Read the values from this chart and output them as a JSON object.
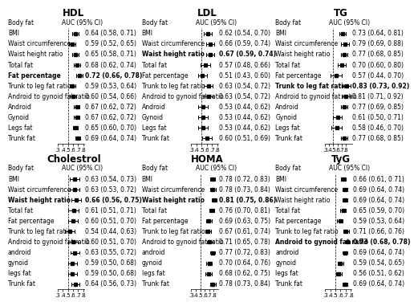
{
  "panels": [
    {
      "title": "HDL",
      "col": 0,
      "row": 0,
      "xlabel_ticks": [
        ".3",
        ".4",
        ".5",
        ".6",
        ".7",
        ".8"
      ],
      "xticks": [
        0.3,
        0.4,
        0.5,
        0.6,
        0.7,
        0.8
      ],
      "xlim": [
        0.3,
        0.82
      ],
      "vline": 0.5,
      "rows": [
        {
          "label": "BMI",
          "est": 0.64,
          "lo": 0.58,
          "hi": 0.71,
          "text": "0.64 (0.58, 0.71)",
          "bold": false
        },
        {
          "label": "Waist circumference",
          "est": 0.59,
          "lo": 0.52,
          "hi": 0.65,
          "text": "0.59 (0.52, 0.65)",
          "bold": false
        },
        {
          "label": "Waist height ratio",
          "est": 0.65,
          "lo": 0.58,
          "hi": 0.71,
          "text": "0.65 (0.58, 0.71)",
          "bold": false
        },
        {
          "label": "Total fat",
          "est": 0.68,
          "lo": 0.62,
          "hi": 0.74,
          "text": "0.68 (0.62, 0.74)",
          "bold": false
        },
        {
          "label": "Fat percentage",
          "est": 0.72,
          "lo": 0.66,
          "hi": 0.78,
          "text": "0.72 (0.66, 0.78)",
          "bold": true
        },
        {
          "label": "Trunk to leg fat ratio",
          "est": 0.59,
          "lo": 0.53,
          "hi": 0.64,
          "text": "0.59 (0.53, 0.64)",
          "bold": false
        },
        {
          "label": "Android to gynoid fat ratio",
          "est": 0.6,
          "lo": 0.54,
          "hi": 0.66,
          "text": "0.60 (0.54, 0.66)",
          "bold": false
        },
        {
          "label": "Android",
          "est": 0.67,
          "lo": 0.62,
          "hi": 0.72,
          "text": "0.67 (0.62, 0.72)",
          "bold": false
        },
        {
          "label": "Gynoid",
          "est": 0.67,
          "lo": 0.62,
          "hi": 0.72,
          "text": "0.67 (0.62, 0.72)",
          "bold": false
        },
        {
          "label": "Legs fat",
          "est": 0.65,
          "lo": 0.6,
          "hi": 0.7,
          "text": "0.65 (0.60, 0.70)",
          "bold": false
        },
        {
          "label": "Trunk fat",
          "est": 0.69,
          "lo": 0.64,
          "hi": 0.74,
          "text": "0.69 (0.64, 0.74)",
          "bold": false
        }
      ]
    },
    {
      "title": "LDL",
      "col": 1,
      "row": 0,
      "xlabel_ticks": [
        ".3",
        ".4",
        ".5",
        ".6",
        ".7",
        ".8"
      ],
      "xticks": [
        0.3,
        0.4,
        0.5,
        0.6,
        0.7,
        0.8
      ],
      "xlim": [
        0.3,
        0.82
      ],
      "vline": 0.5,
      "rows": [
        {
          "label": "BMI",
          "est": 0.62,
          "lo": 0.54,
          "hi": 0.7,
          "text": "0.62 (0.54, 0.70)",
          "bold": false
        },
        {
          "label": "Waist circumference",
          "est": 0.66,
          "lo": 0.59,
          "hi": 0.74,
          "text": "0.66 (0.59, 0.74)",
          "bold": false
        },
        {
          "label": "Waist height ratio",
          "est": 0.67,
          "lo": 0.59,
          "hi": 0.74,
          "text": "0.67 (0.59, 0.74)",
          "bold": true
        },
        {
          "label": "Total fat",
          "est": 0.57,
          "lo": 0.48,
          "hi": 0.66,
          "text": "0.57 (0.48, 0.66)",
          "bold": false
        },
        {
          "label": "Fat percentage",
          "est": 0.51,
          "lo": 0.43,
          "hi": 0.6,
          "text": "0.51 (0.43, 0.60)",
          "bold": false
        },
        {
          "label": "Trunk to leg fat ratio",
          "est": 0.63,
          "lo": 0.54,
          "hi": 0.72,
          "text": "0.63 (0.54, 0.72)",
          "bold": false
        },
        {
          "label": "Android to gynoid fat ratio",
          "est": 0.63,
          "lo": 0.54,
          "hi": 0.72,
          "text": "0.63 (0.54, 0.72)",
          "bold": false
        },
        {
          "label": "Android",
          "est": 0.53,
          "lo": 0.44,
          "hi": 0.62,
          "text": "0.53 (0.44, 0.62)",
          "bold": false
        },
        {
          "label": "Gynoid",
          "est": 0.53,
          "lo": 0.44,
          "hi": 0.62,
          "text": "0.53 (0.44, 0.62)",
          "bold": false
        },
        {
          "label": "Legs fat",
          "est": 0.53,
          "lo": 0.44,
          "hi": 0.62,
          "text": "0.53 (0.44, 0.62)",
          "bold": false
        },
        {
          "label": "Trunk fat",
          "est": 0.6,
          "lo": 0.51,
          "hi": 0.69,
          "text": "0.60 (0.51, 0.69)",
          "bold": false
        }
      ]
    },
    {
      "title": "TG",
      "col": 2,
      "row": 0,
      "xlabel_ticks": [
        ".3",
        ".4",
        ".5",
        ".6",
        ".7",
        ".8"
      ],
      "xticks": [
        0.3,
        0.4,
        0.5,
        0.6,
        0.7,
        0.8
      ],
      "xlim": [
        0.3,
        0.95
      ],
      "vline": 0.5,
      "rows": [
        {
          "label": "BMI",
          "est": 0.73,
          "lo": 0.64,
          "hi": 0.81,
          "text": "0.73 (0.64, 0.81)",
          "bold": false
        },
        {
          "label": "Waist circumference",
          "est": 0.79,
          "lo": 0.69,
          "hi": 0.88,
          "text": "0.79 (0.69, 0.88)",
          "bold": false
        },
        {
          "label": "Waist height ratio",
          "est": 0.77,
          "lo": 0.68,
          "hi": 0.85,
          "text": "0.77 (0.68, 0.85)",
          "bold": false
        },
        {
          "label": "Total fat",
          "est": 0.7,
          "lo": 0.6,
          "hi": 0.8,
          "text": "0.70 (0.60, 0.80)",
          "bold": false
        },
        {
          "label": "Fat percentage",
          "est": 0.57,
          "lo": 0.44,
          "hi": 0.7,
          "text": "0.57 (0.44, 0.70)",
          "bold": false
        },
        {
          "label": "Trunk to leg fat ratio",
          "est": 0.83,
          "lo": 0.73,
          "hi": 0.92,
          "text": "0.83 (0.73, 0.92)",
          "bold": true
        },
        {
          "label": "Android to gynoid fat ratio",
          "est": 0.81,
          "lo": 0.71,
          "hi": 0.92,
          "text": "0.81 (0.71, 0.92)",
          "bold": false
        },
        {
          "label": "Android",
          "est": 0.77,
          "lo": 0.69,
          "hi": 0.85,
          "text": "0.77 (0.69, 0.85)",
          "bold": false
        },
        {
          "label": "Gynoid",
          "est": 0.61,
          "lo": 0.5,
          "hi": 0.71,
          "text": "0.61 (0.50, 0.71)",
          "bold": false
        },
        {
          "label": "Legs fat",
          "est": 0.58,
          "lo": 0.46,
          "hi": 0.7,
          "text": "0.58 (0.46, 0.70)",
          "bold": false
        },
        {
          "label": "Trunk fat",
          "est": 0.77,
          "lo": 0.68,
          "hi": 0.85,
          "text": "0.77 (0.68, 0.85)",
          "bold": false
        }
      ]
    },
    {
      "title": "Cholestrol",
      "col": 0,
      "row": 1,
      "xlabel_ticks": [
        ".3",
        ".4",
        ".5",
        ".6",
        ".7",
        ".8"
      ],
      "xticks": [
        0.3,
        0.4,
        0.5,
        0.6,
        0.7,
        0.8
      ],
      "xlim": [
        0.3,
        0.82
      ],
      "vline": 0.5,
      "rows": [
        {
          "label": "BMI",
          "est": 0.63,
          "lo": 0.54,
          "hi": 0.73,
          "text": "0.63 (0.54, 0.73)",
          "bold": false
        },
        {
          "label": "Waist circumference",
          "est": 0.63,
          "lo": 0.53,
          "hi": 0.72,
          "text": "0.63 (0.53, 0.72)",
          "bold": false
        },
        {
          "label": "Waist height ratio",
          "est": 0.66,
          "lo": 0.56,
          "hi": 0.75,
          "text": "0.66 (0.56, 0.75)",
          "bold": true
        },
        {
          "label": "Total fat",
          "est": 0.61,
          "lo": 0.51,
          "hi": 0.71,
          "text": "0.61 (0.51, 0.71)",
          "bold": false
        },
        {
          "label": "Fat percentage",
          "est": 0.6,
          "lo": 0.51,
          "hi": 0.7,
          "text": "0.60 (0.51, 0.70)",
          "bold": false
        },
        {
          "label": "Trunk to leg fat ratio",
          "est": 0.54,
          "lo": 0.44,
          "hi": 0.63,
          "text": "0.54 (0.44, 0.63)",
          "bold": false
        },
        {
          "label": "Android to gynoid fat ratio",
          "est": 0.6,
          "lo": 0.51,
          "hi": 0.7,
          "text": "0.60 (0.51, 0.70)",
          "bold": false
        },
        {
          "label": "android",
          "est": 0.63,
          "lo": 0.55,
          "hi": 0.72,
          "text": "0.63 (0.55, 0.72)",
          "bold": false
        },
        {
          "label": "gynoid",
          "est": 0.59,
          "lo": 0.5,
          "hi": 0.68,
          "text": "0.59 (0.50, 0.68)",
          "bold": false
        },
        {
          "label": "legs fat",
          "est": 0.59,
          "lo": 0.5,
          "hi": 0.68,
          "text": "0.59 (0.50, 0.68)",
          "bold": false
        },
        {
          "label": "Trunk fat",
          "est": 0.64,
          "lo": 0.56,
          "hi": 0.73,
          "text": "0.64 (0.56, 0.73)",
          "bold": false
        }
      ]
    },
    {
      "title": "HOMA",
      "col": 1,
      "row": 1,
      "xlabel_ticks": [
        ".3",
        ".4",
        ".5",
        ".6",
        ".7",
        ".8"
      ],
      "xticks": [
        0.3,
        0.4,
        0.5,
        0.6,
        0.7,
        0.8
      ],
      "xlim": [
        0.3,
        0.9
      ],
      "vline": 0.5,
      "rows": [
        {
          "label": "BMI",
          "est": 0.78,
          "lo": 0.72,
          "hi": 0.83,
          "text": "0.78 (0.72, 0.83)",
          "bold": false
        },
        {
          "label": "Waist circumference",
          "est": 0.78,
          "lo": 0.73,
          "hi": 0.84,
          "text": "0.78 (0.73, 0.84)",
          "bold": false
        },
        {
          "label": "Waist height ratio",
          "est": 0.81,
          "lo": 0.75,
          "hi": 0.86,
          "text": "0.81 (0.75, 0.86)",
          "bold": true
        },
        {
          "label": "Total fat",
          "est": 0.76,
          "lo": 0.7,
          "hi": 0.81,
          "text": "0.76 (0.70, 0.81)",
          "bold": false
        },
        {
          "label": "Fat percentage",
          "est": 0.69,
          "lo": 0.63,
          "hi": 0.75,
          "text": "0.69 (0.63, 0.75)",
          "bold": false
        },
        {
          "label": "Trunk to leg fat ratio",
          "est": 0.67,
          "lo": 0.61,
          "hi": 0.74,
          "text": "0.67 (0.61, 0.74)",
          "bold": false
        },
        {
          "label": "Android to gynoid fat ratio",
          "est": 0.71,
          "lo": 0.65,
          "hi": 0.78,
          "text": "0.71 (0.65, 0.78)",
          "bold": false
        },
        {
          "label": "android",
          "est": 0.77,
          "lo": 0.72,
          "hi": 0.83,
          "text": "0.77 (0.72, 0.83)",
          "bold": false
        },
        {
          "label": "gynoid",
          "est": 0.7,
          "lo": 0.64,
          "hi": 0.76,
          "text": "0.70 (0.64, 0.76)",
          "bold": false
        },
        {
          "label": "legs fat",
          "est": 0.68,
          "lo": 0.62,
          "hi": 0.75,
          "text": "0.68 (0.62, 0.75)",
          "bold": false
        },
        {
          "label": "Trunk fat",
          "est": 0.78,
          "lo": 0.73,
          "hi": 0.84,
          "text": "0.78 (0.73, 0.84)",
          "bold": false
        }
      ]
    },
    {
      "title": "TyG",
      "col": 2,
      "row": 1,
      "xlabel_ticks": [
        ".3",
        ".4",
        ".5",
        ".6",
        ".7",
        ".8"
      ],
      "xticks": [
        0.3,
        0.4,
        0.5,
        0.6,
        0.7,
        0.8
      ],
      "xlim": [
        0.3,
        0.82
      ],
      "vline": 0.5,
      "rows": [
        {
          "label": "BMI",
          "est": 0.66,
          "lo": 0.61,
          "hi": 0.71,
          "text": "0.66 (0.61, 0.71)",
          "bold": false
        },
        {
          "label": "Waist circumference",
          "est": 0.69,
          "lo": 0.64,
          "hi": 0.74,
          "text": "0.69 (0.64, 0.74)",
          "bold": false
        },
        {
          "label": "Waist height ratio",
          "est": 0.69,
          "lo": 0.64,
          "hi": 0.74,
          "text": "0.69 (0.64, 0.74)",
          "bold": false
        },
        {
          "label": "Total fat",
          "est": 0.65,
          "lo": 0.59,
          "hi": 0.7,
          "text": "0.65 (0.59, 0.70)",
          "bold": false
        },
        {
          "label": "Fat percentage",
          "est": 0.59,
          "lo": 0.53,
          "hi": 0.64,
          "text": "0.59 (0.53, 0.64)",
          "bold": false
        },
        {
          "label": "Trunk to leg fat ratio",
          "est": 0.71,
          "lo": 0.66,
          "hi": 0.76,
          "text": "0.71 (0.66, 0.76)",
          "bold": false
        },
        {
          "label": "Android to gynoid fat ratio",
          "est": 0.73,
          "lo": 0.68,
          "hi": 0.78,
          "text": "0.73 (0.68, 0.78)",
          "bold": true
        },
        {
          "label": "android",
          "est": 0.69,
          "lo": 0.64,
          "hi": 0.74,
          "text": "0.69 (0.64, 0.74)",
          "bold": false
        },
        {
          "label": "gynoid",
          "est": 0.59,
          "lo": 0.54,
          "hi": 0.65,
          "text": "0.59 (0.54, 0.65)",
          "bold": false
        },
        {
          "label": "legs fat",
          "est": 0.56,
          "lo": 0.51,
          "hi": 0.62,
          "text": "0.56 (0.51, 0.62)",
          "bold": false
        },
        {
          "label": "Trunk fat",
          "est": 0.69,
          "lo": 0.64,
          "hi": 0.74,
          "text": "0.69 (0.64, 0.74)",
          "bold": false
        }
      ]
    }
  ],
  "header_label": "Body fat",
  "header_auc": "AUC (95% CI)",
  "font_size": 5.5,
  "title_font_size": 8.5
}
